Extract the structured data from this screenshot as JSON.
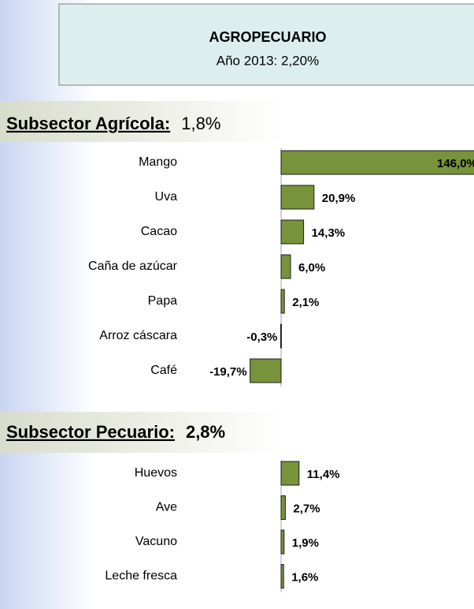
{
  "header": {
    "title": "AGROPECUARIO",
    "subtitle": "Año 2013: 2,20%"
  },
  "chart_data": [
    {
      "type": "bar",
      "title": "Subsector Agrícola:",
      "title_value": "1,8%",
      "color": "#77933c",
      "categories": [
        "Mango",
        "Uva",
        "Cacao",
        "Caña de azúcar",
        "Papa",
        "Arroz cáscara",
        "Café"
      ],
      "values": [
        146.0,
        20.9,
        14.3,
        6.0,
        2.1,
        -0.3,
        -19.7
      ],
      "value_labels": [
        "146,0%",
        "20,9%",
        "14,3%",
        "6,0%",
        "2,1%",
        "-0,3%",
        "-19,7%"
      ]
    },
    {
      "type": "bar",
      "title": "Subsector Pecuario:",
      "title_value": "2,8%",
      "color": "#77933c",
      "categories": [
        "Huevos",
        "Ave",
        "Vacuno",
        "Leche fresca"
      ],
      "values": [
        11.4,
        2.7,
        1.9,
        1.6
      ],
      "value_labels": [
        "11,4%",
        "2,7%",
        "1,9%",
        "1,6%"
      ]
    }
  ]
}
